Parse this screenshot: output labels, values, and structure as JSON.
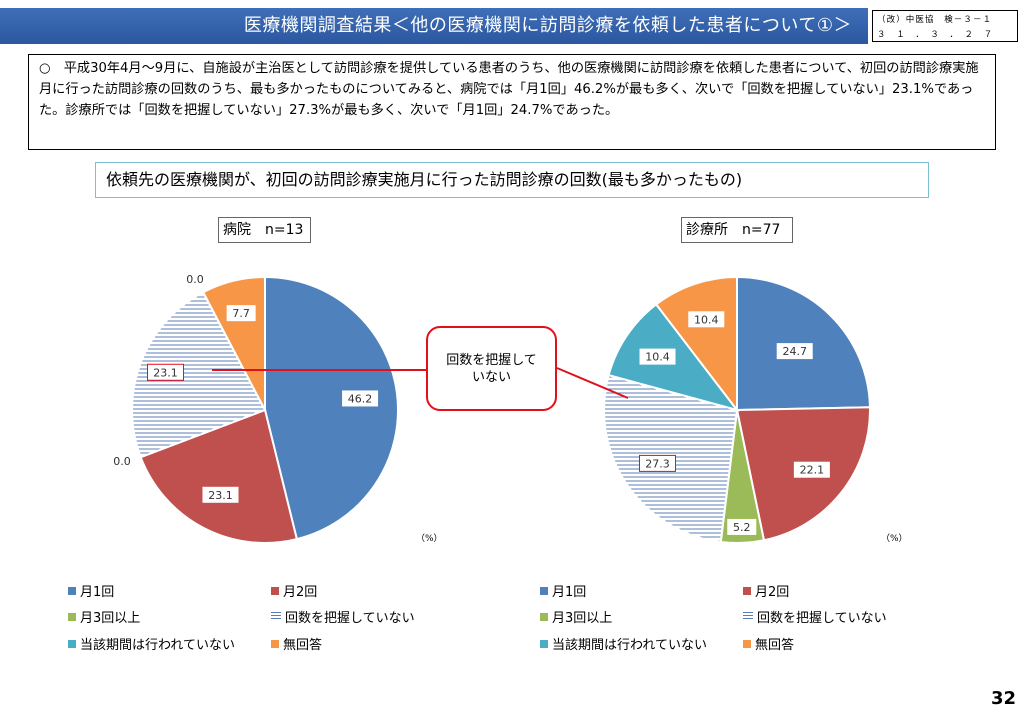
{
  "header": {
    "title": "医療機関調査結果＜他の医療機関に訪問診療を依頼した患者について①＞",
    "doc_code_line1": "（改）中医協　検－３－１",
    "doc_code_line2": "３　１　．　３　．　２　７"
  },
  "summary": {
    "bullet": "○",
    "text": "平成30年4月～9月に、自施設が主治医として訪問診療を提供している患者のうち、他の医療機関に訪問診療を依頼した患者について、初回の訪問診療実施月に行った訪問診療の回数のうち、最も多かったものについてみると、病院では「月1回」46.2%が最も多く、次いで「回数を把握していない」23.1%であった。診療所では「回数を把握していない」27.3%が最も多く、次いで「月1回」24.7%であった。"
  },
  "subtitle": "依頼先の医療機関が、初回の訪問診療実施月に行った訪問診療の回数(最も多かったもの)",
  "callout": {
    "text": "回数を把握していない"
  },
  "unit_label": "（%）",
  "page_number": "32",
  "colors": {
    "月1回": "#4f81bd",
    "月2回": "#c0504d",
    "月3回以上": "#9bbb59",
    "回数を把握していない": "#5b7fb6",
    "当該期間は行われていない": "#4bacc6",
    "無回答": "#f79646",
    "callout_border": "#e2101b"
  },
  "chart_data": [
    {
      "type": "pie",
      "title": "病院　n=13",
      "unit": "%",
      "slices": [
        {
          "name": "月1回",
          "value": 46.2,
          "label": "46.2"
        },
        {
          "name": "月2回",
          "value": 23.1,
          "label": "23.1"
        },
        {
          "name": "月3回以上",
          "value": 0.0,
          "label": "0.0"
        },
        {
          "name": "回数を把握していない",
          "value": 23.1,
          "label": "23.1"
        },
        {
          "name": "当該期間は行われていない",
          "value": 0.0,
          "label": "0.0"
        },
        {
          "name": "無回答",
          "value": 7.7,
          "label": "7.7"
        }
      ],
      "legend": [
        "月1回",
        "月2回",
        "月3回以上",
        "回数を把握していない",
        "当該期間は行われていない",
        "無回答"
      ]
    },
    {
      "type": "pie",
      "title": "診療所　n=77",
      "unit": "%",
      "slices": [
        {
          "name": "月1回",
          "value": 24.7,
          "label": "24.7"
        },
        {
          "name": "月2回",
          "value": 22.1,
          "label": "22.1"
        },
        {
          "name": "月3回以上",
          "value": 5.2,
          "label": "5.2"
        },
        {
          "name": "回数を把握していない",
          "value": 27.3,
          "label": "27.3"
        },
        {
          "name": "当該期間は行われていない",
          "value": 10.4,
          "label": "10.4"
        },
        {
          "name": "無回答",
          "value": 10.4,
          "label": "10.4"
        }
      ],
      "legend": [
        "月1回",
        "月2回",
        "月3回以上",
        "回数を把握していない",
        "当該期間は行われていない",
        "無回答"
      ]
    }
  ]
}
